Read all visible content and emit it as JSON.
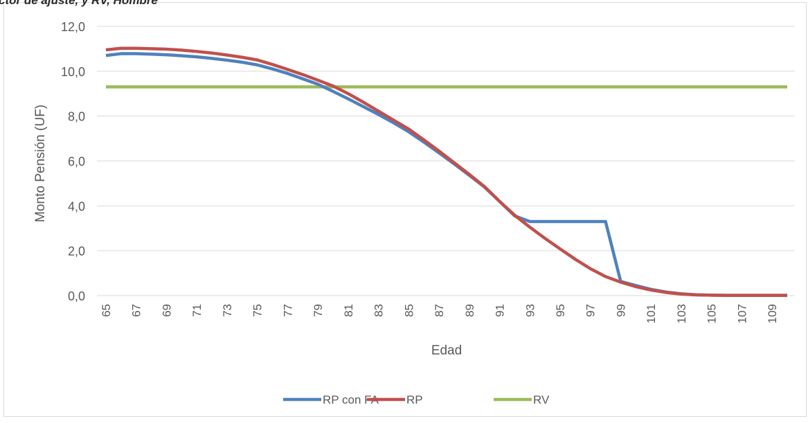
{
  "header_partial_text": "ctor de ajuste, y RV, Hombre",
  "chart_data": {
    "type": "line",
    "title": "",
    "xlabel": "Edad",
    "ylabel": "Monto Pensión (UF)",
    "ylim": [
      0,
      12
    ],
    "yticks": [
      "0,0",
      "2,0",
      "4,0",
      "6,0",
      "8,0",
      "10,0",
      "12,0"
    ],
    "x": [
      65,
      66,
      67,
      68,
      69,
      70,
      71,
      72,
      73,
      74,
      75,
      76,
      77,
      78,
      79,
      80,
      81,
      82,
      83,
      84,
      85,
      86,
      87,
      88,
      89,
      90,
      91,
      92,
      93,
      94,
      95,
      96,
      97,
      98,
      99,
      100,
      101,
      102,
      103,
      104,
      105,
      106,
      107,
      108,
      109,
      110
    ],
    "xtick_labels": [
      "65",
      "67",
      "69",
      "71",
      "73",
      "75",
      "77",
      "79",
      "81",
      "83",
      "85",
      "87",
      "89",
      "91",
      "93",
      "95",
      "97",
      "99",
      "101",
      "103",
      "105",
      "107",
      "109"
    ],
    "grid": "horizontal",
    "legend_position": "bottom",
    "series": [
      {
        "name": "RP con FA",
        "color": "#4f81bd",
        "values": [
          10.7,
          10.78,
          10.78,
          10.76,
          10.73,
          10.69,
          10.64,
          10.57,
          10.49,
          10.4,
          10.28,
          10.1,
          9.9,
          9.66,
          9.42,
          9.1,
          8.77,
          8.42,
          8.07,
          7.7,
          7.3,
          6.84,
          6.36,
          5.87,
          5.36,
          4.84,
          4.2,
          3.55,
          3.3,
          3.3,
          3.3,
          3.3,
          3.3,
          3.3,
          0.63,
          0.45,
          0.28,
          0.16,
          0.08,
          0.04,
          0.02,
          0.01,
          0.01,
          0.01,
          0.01,
          0.01
        ]
      },
      {
        "name": "RP",
        "color": "#c0504d",
        "values": [
          10.95,
          11.02,
          11.02,
          11.0,
          10.98,
          10.94,
          10.88,
          10.81,
          10.72,
          10.62,
          10.5,
          10.3,
          10.08,
          9.85,
          9.6,
          9.34,
          9.0,
          8.62,
          8.22,
          7.82,
          7.42,
          6.94,
          6.44,
          5.92,
          5.4,
          4.86,
          4.2,
          3.58,
          3.05,
          2.55,
          2.08,
          1.62,
          1.2,
          0.85,
          0.6,
          0.4,
          0.25,
          0.14,
          0.07,
          0.03,
          0.02,
          0.01,
          0.01,
          0.01,
          0.01,
          0.01
        ]
      },
      {
        "name": "RV",
        "color": "#9bbb59",
        "values": [
          9.3,
          9.3,
          9.3,
          9.3,
          9.3,
          9.3,
          9.3,
          9.3,
          9.3,
          9.3,
          9.3,
          9.3,
          9.3,
          9.3,
          9.3,
          9.3,
          9.3,
          9.3,
          9.3,
          9.3,
          9.3,
          9.3,
          9.3,
          9.3,
          9.3,
          9.3,
          9.3,
          9.3,
          9.3,
          9.3,
          9.3,
          9.3,
          9.3,
          9.3,
          9.3,
          9.3,
          9.3,
          9.3,
          9.3,
          9.3,
          9.3,
          9.3,
          9.3,
          9.3,
          9.3,
          9.3
        ]
      }
    ]
  }
}
